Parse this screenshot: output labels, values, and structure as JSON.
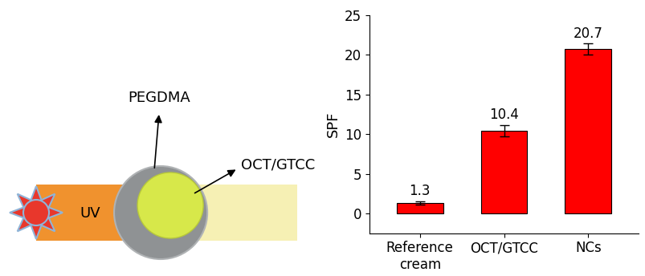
{
  "diagram": {
    "light": "UV",
    "shell": "PEGDMA",
    "core": "OCT/GTCC"
  },
  "chart_data": {
    "type": "bar",
    "ylabel": "SPF",
    "categories": [
      "Reference\ncream",
      "OCT/GTCC",
      "NCs"
    ],
    "values": [
      1.3,
      10.4,
      20.7
    ],
    "errors": [
      0.2,
      0.7,
      0.7
    ],
    "color": "#ff0000",
    "data_labels": true,
    "ylim": [
      -2.5,
      25
    ],
    "yticks": [
      0,
      5,
      10,
      15,
      20,
      25
    ],
    "grid": false
  }
}
